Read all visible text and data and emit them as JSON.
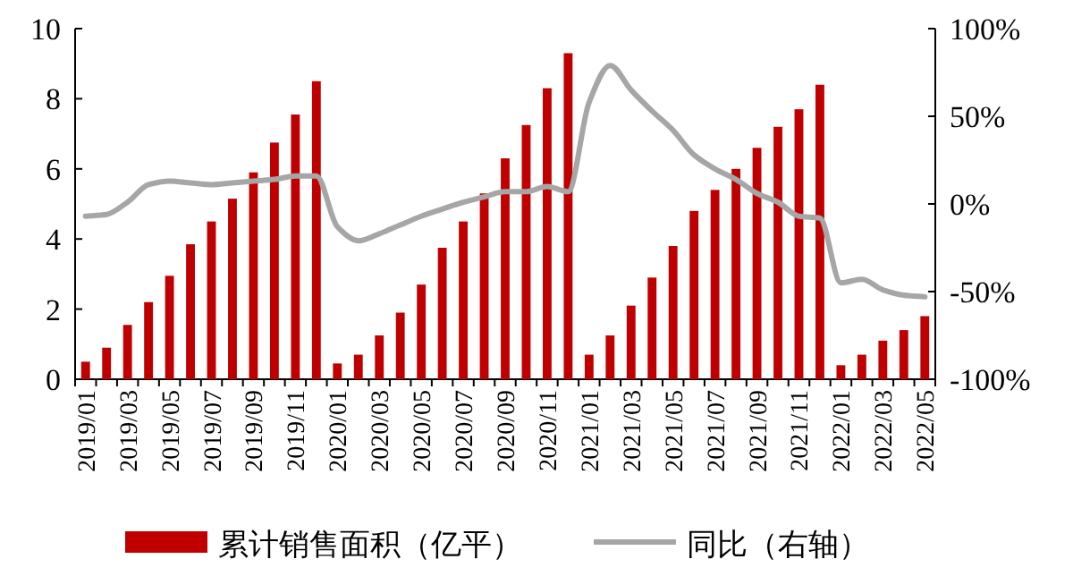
{
  "chart_data": {
    "type": "bar",
    "categories": [
      "2019/01",
      null,
      "2019/03",
      null,
      "2019/05",
      null,
      "2019/07",
      null,
      "2019/09",
      null,
      "2019/11",
      null,
      "2020/01",
      null,
      "2020/03",
      null,
      "2020/05",
      null,
      "2020/07",
      null,
      "2020/09",
      null,
      "2020/11",
      null,
      "2021/01",
      null,
      "2021/03",
      null,
      "2021/05",
      null,
      "2021/07",
      null,
      "2021/09",
      null,
      "2021/11",
      null,
      "2022/01",
      null,
      "2022/03",
      null,
      "2022/05"
    ],
    "series": [
      {
        "name": "累计销售面积（亿平）",
        "color": "#c00000",
        "values": [
          0.5,
          0.9,
          1.55,
          2.2,
          2.95,
          3.85,
          4.5,
          5.15,
          5.9,
          6.75,
          7.55,
          8.5,
          0.45,
          0.7,
          1.25,
          1.9,
          2.7,
          3.75,
          4.5,
          5.3,
          6.3,
          7.25,
          8.3,
          9.3,
          0.7,
          1.25,
          2.1,
          2.9,
          3.8,
          4.8,
          5.4,
          6.0,
          6.6,
          7.2,
          7.7,
          8.4,
          0.4,
          0.7,
          1.1,
          1.4,
          1.8
        ]
      },
      {
        "name": "同比（右轴）",
        "type": "line",
        "axis": "y2",
        "color": "#a6a6a6",
        "values": [
          -7,
          -6,
          1,
          11,
          13,
          12,
          11,
          12,
          13,
          14,
          16,
          16,
          -13,
          -21,
          -17,
          -12,
          -7,
          -3,
          1,
          4,
          7,
          7,
          10,
          7,
          58,
          79,
          65,
          53,
          42,
          28,
          20,
          14,
          6,
          1,
          -7,
          -8,
          -45,
          -43,
          -49,
          -52,
          -53
        ]
      }
    ],
    "ylim": [
      0,
      10
    ],
    "yticks": [
      0,
      2,
      4,
      6,
      8,
      10
    ],
    "y2lim": [
      -100,
      100
    ],
    "y2ticks": [
      {
        "value": -100,
        "label": "-100%"
      },
      {
        "value": -50,
        "label": "-50%"
      },
      {
        "value": 0,
        "label": "0%"
      },
      {
        "value": 50,
        "label": "50%"
      },
      {
        "value": 100,
        "label": "100%"
      }
    ],
    "legend": "bottom",
    "grid": false
  }
}
